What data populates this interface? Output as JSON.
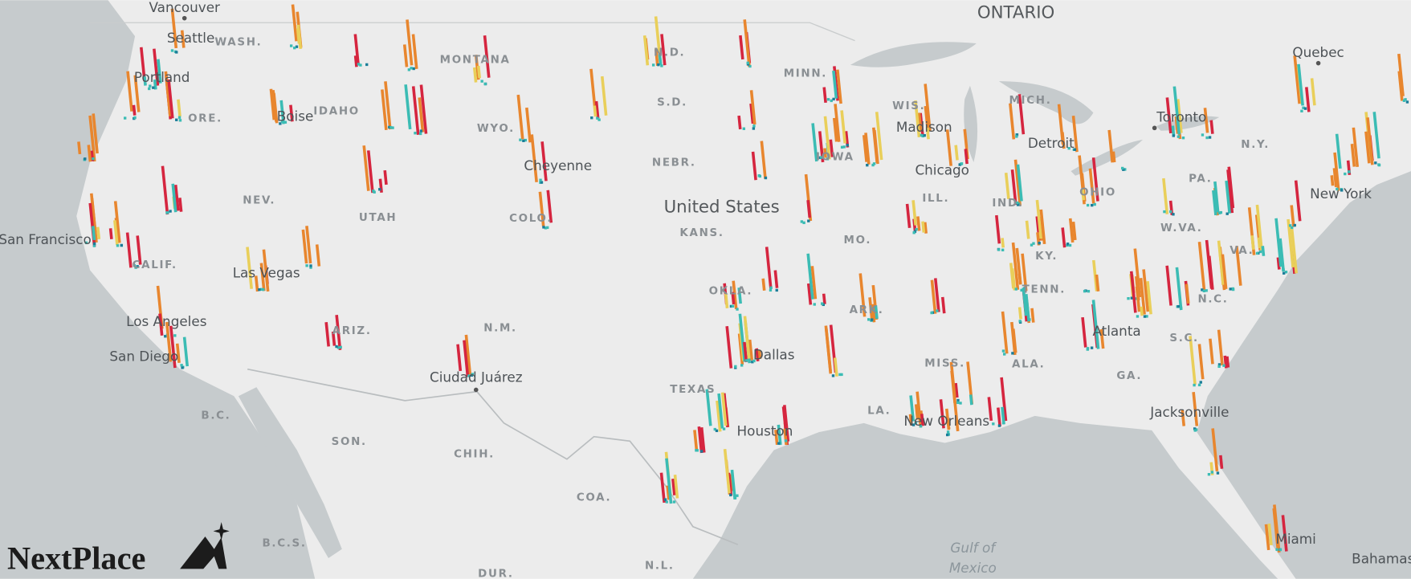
{
  "countries": [
    "United States",
    "ONTARIO"
  ],
  "cities": [
    "Vancouver",
    "Seattle",
    "Portland",
    "Boise",
    "San Francisco",
    "Las Vegas",
    "Los Angeles",
    "San Diego",
    "Cheyenne",
    "Ciudad Juárez",
    "Dallas",
    "Houston",
    "New Orleans",
    "Chicago",
    "Madison",
    "Detroit",
    "Toronto",
    "Quebec",
    "New York",
    "Atlanta",
    "Jacksonville",
    "Miami",
    "Bahamas"
  ],
  "states": [
    "WASH.",
    "ORE.",
    "IDAHO",
    "MONTANA",
    "WYO.",
    "NEV.",
    "UTAH",
    "COLO.",
    "CALIF.",
    "ARIZ.",
    "N.M.",
    "N.D.",
    "S.D.",
    "NEBR.",
    "KANS.",
    "OKLA.",
    "TEXAS",
    "MINN.",
    "IOWA",
    "MO.",
    "ARK.",
    "LA.",
    "MISS.",
    "ALA.",
    "WIS.",
    "ILL.",
    "IND.",
    "OHIO",
    "MICH.",
    "KY.",
    "TENN.",
    "GA.",
    "S.C.",
    "N.C.",
    "VA.",
    "W.VA.",
    "PA.",
    "N.Y.",
    "B.C.",
    "SON.",
    "CHIH.",
    "COA.",
    "B.C.S.",
    "DUR.",
    "N.L."
  ],
  "water": [
    "Gulf of",
    "Mexico"
  ],
  "logo": "NextPlace"
}
